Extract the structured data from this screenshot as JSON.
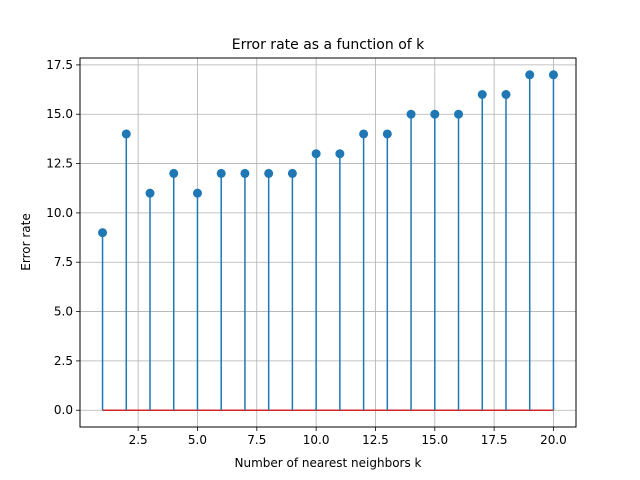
{
  "chart_data": {
    "type": "stem",
    "title": "Error rate as a function of k",
    "xlabel": "Number of nearest neighbors k",
    "ylabel": "Error rate",
    "x": [
      1,
      2,
      3,
      4,
      5,
      6,
      7,
      8,
      9,
      10,
      11,
      12,
      13,
      14,
      15,
      16,
      17,
      18,
      19,
      20
    ],
    "values": [
      9,
      14,
      11,
      12,
      11,
      12,
      12,
      12,
      12,
      13,
      13,
      14,
      14,
      15,
      15,
      15,
      16,
      16,
      17,
      17
    ],
    "baseline": 0,
    "xlim": [
      0.05,
      20.95
    ],
    "ylim": [
      -0.85,
      17.85
    ],
    "xticks": [
      2.5,
      5.0,
      7.5,
      10.0,
      12.5,
      15.0,
      17.5,
      20.0
    ],
    "xtick_labels": [
      "2.5",
      "5.0",
      "7.5",
      "10.0",
      "12.5",
      "15.0",
      "17.5",
      "20.0"
    ],
    "yticks": [
      0.0,
      2.5,
      5.0,
      7.5,
      10.0,
      12.5,
      15.0,
      17.5
    ],
    "ytick_labels": [
      "0.0",
      "2.5",
      "5.0",
      "7.5",
      "10.0",
      "12.5",
      "15.0",
      "17.5"
    ],
    "grid": true,
    "colors": {
      "stem": "#1f77b4",
      "baseline": "#d62728",
      "grid": "#b0b0b0",
      "axis": "#000000"
    }
  }
}
